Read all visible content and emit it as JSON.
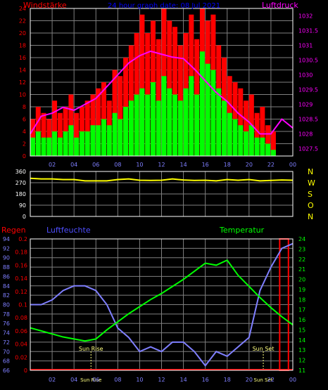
{
  "colors": {
    "background": "#000000",
    "frame": "#ffffff",
    "grid": "#7f7f7f",
    "wind_avg": "#00ff00",
    "wind_gust": "#ff0000",
    "pressure": "#ff00ff",
    "direction": "#ffff00",
    "humidity": "#7f7fff",
    "temperature": "#00ff00",
    "rain": "#ff0000",
    "sun_marker": "#ffff80",
    "title": "#0000ff",
    "dir_letters": "#ffff00",
    "humidity_label": "#4f4fff"
  },
  "chart_data": [
    {
      "type": "bar",
      "title": "24 hour graph date: 08 Jul 2021",
      "ylabel": "Windstärke",
      "y2label": "Luftdruck",
      "grid": true,
      "xlim": [
        0,
        24
      ],
      "ylim": [
        0,
        24
      ],
      "y2lim": [
        1027.25,
        1032.25
      ],
      "x_tick_labels": [
        "02",
        "04",
        "06",
        "08",
        "10",
        "12",
        "14",
        "16",
        "18",
        "20",
        "22",
        "00"
      ],
      "x_tick_hours": [
        2,
        4,
        6,
        8,
        10,
        12,
        14,
        16,
        18,
        20,
        22,
        24
      ],
      "y_ticks": [
        0,
        2,
        4,
        6,
        8,
        10,
        12,
        14,
        16,
        18,
        20,
        22,
        24
      ],
      "y2_ticks": [
        1027.5,
        1028,
        1028.5,
        1029,
        1029.5,
        1030,
        1030.5,
        1031,
        1031.5,
        1032
      ],
      "y2_tick_labels": [
        "1027.5",
        "1028",
        "1028.5",
        "1029",
        "1029.5",
        "1030",
        "1030.5",
        "1031",
        "1031.5",
        "1032"
      ],
      "series": [
        {
          "name": "Windstärke",
          "kind": "gust",
          "x_hours": [
            0,
            0.5,
            1,
            1.5,
            2,
            2.5,
            3,
            3.5,
            4,
            4.5,
            5,
            5.5,
            6,
            6.5,
            7,
            7.5,
            8,
            8.5,
            9,
            9.5,
            10,
            10.5,
            11,
            11.5,
            12,
            12.5,
            13,
            13.5,
            14,
            14.5,
            15,
            15.5,
            16,
            16.5,
            17,
            17.5,
            18,
            18.5,
            19,
            19.5,
            20,
            20.5,
            21,
            21.5,
            22,
            22.5,
            23,
            23.5,
            24
          ],
          "values": [
            6,
            8,
            7,
            6,
            9,
            7,
            8,
            10,
            7,
            8,
            9,
            10,
            11,
            12,
            9,
            14,
            13,
            16,
            18,
            20,
            23,
            20,
            22,
            19,
            24,
            22,
            21,
            18,
            20,
            23,
            19,
            24,
            22,
            23,
            18,
            16,
            13,
            12,
            11,
            9,
            10,
            7,
            8,
            5,
            4,
            0,
            0,
            0,
            0
          ]
        },
        {
          "name": "Windstärke",
          "kind": "average",
          "x_hours": [
            0,
            0.5,
            1,
            1.5,
            2,
            2.5,
            3,
            3.5,
            4,
            4.5,
            5,
            5.5,
            6,
            6.5,
            7,
            7.5,
            8,
            8.5,
            9,
            9.5,
            10,
            10.5,
            11,
            11.5,
            12,
            12.5,
            13,
            13.5,
            14,
            14.5,
            15,
            15.5,
            16,
            16.5,
            17,
            17.5,
            18,
            18.5,
            19,
            19.5,
            20,
            20.5,
            21,
            21.5,
            22,
            22.5,
            23,
            23.5,
            24
          ],
          "values": [
            3,
            4,
            3,
            3,
            4,
            3,
            4,
            5,
            3,
            4,
            4,
            5,
            5,
            6,
            5,
            7,
            6,
            8,
            9,
            10,
            11,
            10,
            12,
            9,
            13,
            11,
            10,
            9,
            11,
            13,
            10,
            17,
            15,
            14,
            11,
            9,
            7,
            6,
            5,
            4,
            5,
            3,
            3,
            2,
            1,
            0,
            0,
            0,
            0
          ]
        },
        {
          "name": "Luftdruck",
          "x_hours": [
            0,
            1,
            2,
            3,
            4,
            5,
            6,
            7,
            8,
            9,
            10,
            11,
            12,
            13,
            14,
            15,
            16,
            17,
            18,
            19,
            20,
            21,
            22,
            23,
            24
          ],
          "values": [
            1028.0,
            1028.6,
            1028.7,
            1028.9,
            1028.8,
            1029.0,
            1029.2,
            1029.6,
            1030.0,
            1030.4,
            1030.65,
            1030.8,
            1030.7,
            1030.6,
            1030.55,
            1030.2,
            1029.8,
            1029.4,
            1029.1,
            1028.7,
            1028.4,
            1028.0,
            1028.0,
            1028.5,
            1028.2
          ]
        }
      ]
    },
    {
      "type": "line",
      "y_right_labels": [
        "N",
        "W",
        "S",
        "O",
        "N"
      ],
      "ylim": [
        0,
        360
      ],
      "y_ticks": [
        0,
        90,
        180,
        270,
        360
      ],
      "grid": true,
      "series": [
        {
          "name": "Windrichtung",
          "x_hours": [
            0,
            1,
            2,
            3,
            4,
            5,
            6,
            7,
            8,
            9,
            10,
            11,
            12,
            13,
            14,
            15,
            16,
            17,
            18,
            19,
            20,
            21,
            22,
            23,
            24
          ],
          "values": [
            305,
            300,
            300,
            295,
            295,
            285,
            285,
            285,
            295,
            300,
            290,
            288,
            290,
            300,
            292,
            288,
            290,
            285,
            295,
            290,
            295,
            285,
            288,
            292,
            290
          ]
        }
      ]
    },
    {
      "type": "line",
      "labels": {
        "rain": "Regen",
        "humidity": "Luftfeuchte",
        "temperature": "Temperatur"
      },
      "grid": true,
      "xlim": [
        0,
        24
      ],
      "rain_ylim": [
        0,
        0.2
      ],
      "rain_ticks": [
        "0",
        "0.02",
        "0.04",
        "0.06",
        "0.08",
        "0.1",
        "0.12",
        "0.14",
        "0.16",
        "0.18",
        "0.2"
      ],
      "humidity_ylim": [
        66,
        94
      ],
      "humidity_ticks": [
        66,
        68,
        70,
        72,
        74,
        76,
        78,
        80,
        82,
        84,
        86,
        88,
        90,
        92,
        94
      ],
      "temperature_ylim": [
        11,
        24
      ],
      "temperature_ticks": [
        11,
        12,
        13,
        14,
        15,
        16,
        17,
        18,
        19,
        20,
        21,
        22,
        23,
        24
      ],
      "sun_rise": {
        "label": "Sun Rise",
        "hour": 5.55
      },
      "sun_set": {
        "label": "Sun Set",
        "hour": 21.3
      },
      "series": [
        {
          "name": "Luftfeuchte",
          "x_hours": [
            0,
            1,
            2,
            3,
            4,
            5,
            6,
            7,
            8,
            9,
            10,
            11,
            12,
            13,
            14,
            15,
            16,
            17,
            18,
            19,
            20,
            21,
            22,
            23,
            24
          ],
          "values": [
            80,
            80,
            81,
            83,
            84,
            84,
            83,
            80,
            75,
            73,
            70,
            71,
            70,
            72,
            72,
            70,
            67,
            70,
            69,
            71,
            73,
            83,
            88,
            92,
            93
          ]
        },
        {
          "name": "Temperatur",
          "x_hours": [
            0,
            1,
            2,
            3,
            4,
            5,
            6,
            7,
            8,
            9,
            10,
            11,
            12,
            13,
            14,
            15,
            16,
            17,
            18,
            19,
            20,
            21,
            22,
            23,
            24
          ],
          "values": [
            15.2,
            14.9,
            14.6,
            14.3,
            14.1,
            13.9,
            14.1,
            15.0,
            15.8,
            16.6,
            17.3,
            18.0,
            18.6,
            19.3,
            20.0,
            20.8,
            21.6,
            21.4,
            21.9,
            20.4,
            19.3,
            18.2,
            17.2,
            16.3,
            15.5
          ]
        },
        {
          "name": "Regen",
          "x_hours": [
            22.8,
            23.6
          ],
          "values": [
            0.2,
            0.2
          ]
        }
      ]
    }
  ]
}
